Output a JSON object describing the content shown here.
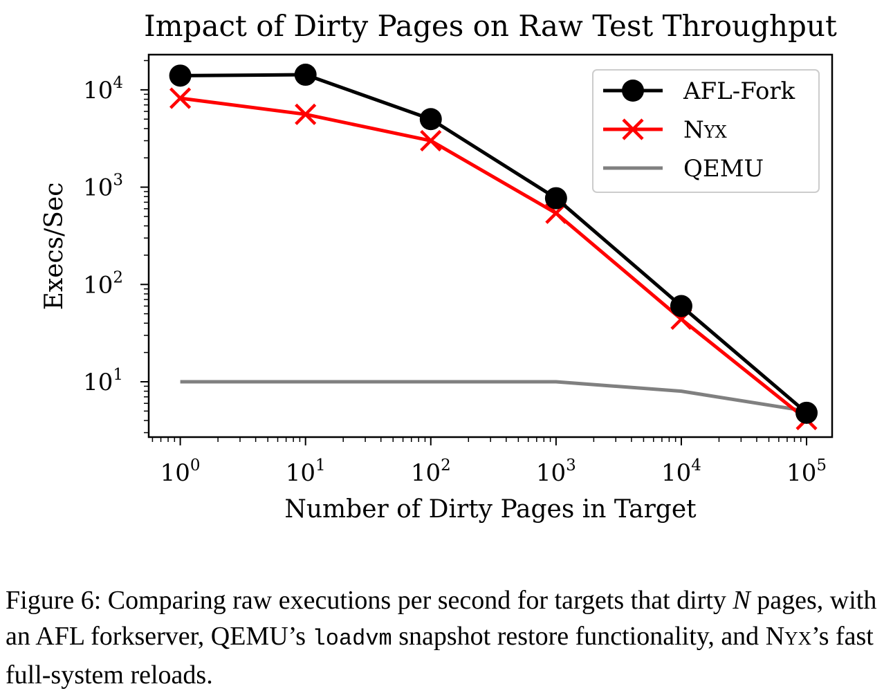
{
  "chart_data": {
    "type": "line",
    "title": "Impact of Dirty Pages on Raw Test Throughput",
    "xlabel": "Number of Dirty Pages in Target",
    "ylabel": "Execs/Sec",
    "xscale": "log",
    "yscale": "log",
    "x": [
      1,
      10,
      100,
      1000,
      10000,
      100000
    ],
    "xlim": [
      0.56,
      160000
    ],
    "ylim": [
      2.7,
      23000
    ],
    "x_ticks": [
      {
        "value": 1,
        "base": "10",
        "exp": "0"
      },
      {
        "value": 10,
        "base": "10",
        "exp": "1"
      },
      {
        "value": 100,
        "base": "10",
        "exp": "2"
      },
      {
        "value": 1000,
        "base": "10",
        "exp": "3"
      },
      {
        "value": 10000,
        "base": "10",
        "exp": "4"
      },
      {
        "value": 100000,
        "base": "10",
        "exp": "5"
      }
    ],
    "y_ticks": [
      {
        "value": 10,
        "base": "10",
        "exp": "1"
      },
      {
        "value": 100,
        "base": "10",
        "exp": "2"
      },
      {
        "value": 1000,
        "base": "10",
        "exp": "3"
      },
      {
        "value": 10000,
        "base": "10",
        "exp": "4"
      }
    ],
    "grid": false,
    "legend_position": "top-right",
    "series": [
      {
        "name": "AFL-Fork",
        "values": [
          14000,
          14300,
          5000,
          770,
          60,
          4.8
        ],
        "color": "#000000",
        "marker": "circle"
      },
      {
        "name": "Nyx",
        "values": [
          8200,
          5600,
          3000,
          540,
          44,
          4.1
        ],
        "color": "#ff0000",
        "marker": "x"
      },
      {
        "name": "QEMU",
        "values": [
          10,
          10,
          10,
          10,
          8,
          5
        ],
        "color": "#808080",
        "marker": "none"
      }
    ]
  },
  "caption": {
    "p1": "Figure 6: Comparing raw executions per second for targets that dirty ",
    "n": "N",
    "p2": " pages, with an AFL forkserver, QEMU’s ",
    "code": "loadvm",
    "p3": " snapshot restore functionality, and ",
    "nyx": "Nyx",
    "p4": "’s fast full-system reloads."
  }
}
